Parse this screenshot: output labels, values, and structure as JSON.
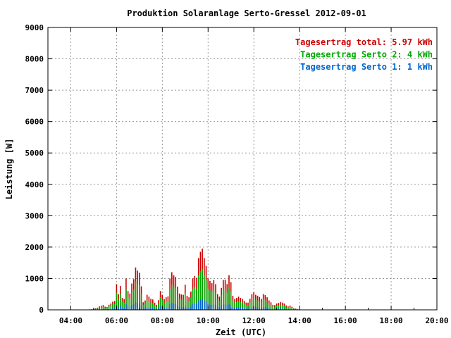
{
  "chart_data": {
    "type": "bar",
    "title": "Produktion Solaranlage Serto-Gressel 2012-09-01",
    "xlabel": "Zeit (UTC)",
    "ylabel": "Leistung [W]",
    "xlim": [
      3.0,
      20.0
    ],
    "ylim": [
      0,
      9000
    ],
    "xticks": [
      "04:00",
      "06:00",
      "08:00",
      "10:00",
      "12:00",
      "14:00",
      "16:00",
      "18:00",
      "20:00"
    ],
    "xtick_hours": [
      4,
      6,
      8,
      10,
      12,
      14,
      16,
      18,
      20
    ],
    "yticks": [
      0,
      1000,
      2000,
      3000,
      4000,
      5000,
      6000,
      7000,
      8000,
      9000
    ],
    "grid": true,
    "legend_position": "top-right",
    "legend": [
      {
        "label": "Tagesertrag total: 5.97 kWh",
        "color": "#cc0000"
      },
      {
        "label": "Tagesertrag Serto 2: 4 kWh",
        "color": "#00aa00"
      },
      {
        "label": "Tagesertrag Serto 1: 1 kWh",
        "color": "#0066cc"
      }
    ],
    "colors": {
      "total": "#cc0000",
      "serto2": "#00aa00",
      "serto1": "#0066cc"
    },
    "x_start_hour": 4.75,
    "x_step_hours": 0.0833,
    "total": [
      10,
      15,
      25,
      35,
      50,
      70,
      110,
      130,
      150,
      100,
      90,
      160,
      200,
      260,
      280,
      820,
      500,
      760,
      380,
      340,
      1000,
      600,
      520,
      840,
      980,
      1350,
      1250,
      1180,
      750,
      240,
      300,
      480,
      420,
      350,
      330,
      230,
      160,
      310,
      600,
      480,
      340,
      400,
      430,
      1000,
      1200,
      1100,
      1050,
      740,
      520,
      490,
      480,
      800,
      450,
      400,
      580,
      1000,
      1080,
      1020,
      1650,
      1850,
      1950,
      1650,
      1400,
      1000,
      920,
      850,
      950,
      820,
      500,
      420,
      700,
      950,
      960,
      820,
      1100,
      880,
      450,
      350,
      380,
      420,
      380,
      350,
      280,
      230,
      230,
      350,
      500,
      560,
      480,
      450,
      410,
      350,
      500,
      470,
      400,
      300,
      240,
      160,
      150,
      200,
      220,
      250,
      230,
      200,
      140,
      110,
      140,
      100,
      50,
      40,
      20,
      15
    ]
  }
}
